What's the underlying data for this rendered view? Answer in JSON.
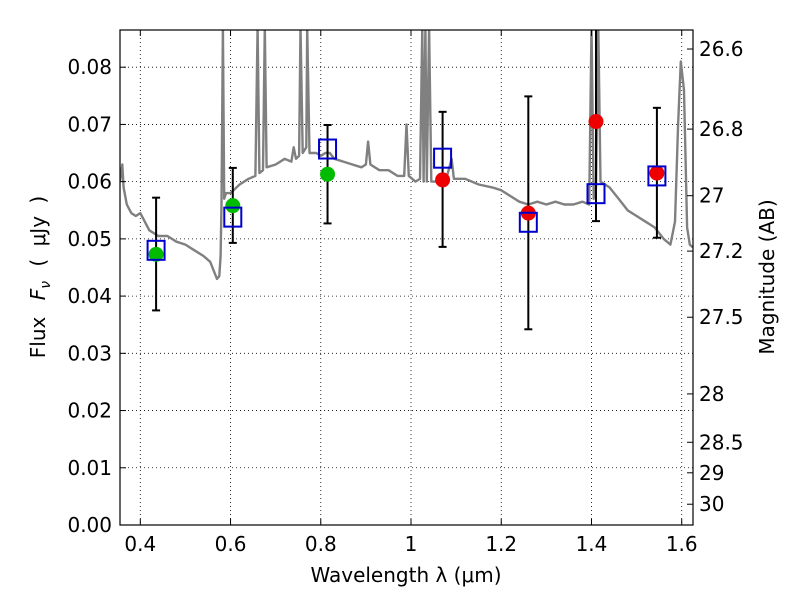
{
  "chart_data": {
    "type": "scatter",
    "xlabel": "Wavelength  λ (μm)",
    "ylabel": "Flux  F_ν  ( μJy )",
    "ylabel_parts": {
      "a": "Flux",
      "b": "F",
      "c": "ν",
      "d": "(",
      "e": "μJy",
      "f": ")"
    },
    "y2label": "Magnitude (AB)",
    "xlim": [
      0.355,
      1.625
    ],
    "ylim": [
      0.0,
      0.0865
    ],
    "grid": true,
    "x_ticks": [
      {
        "value": 0.4,
        "label": "0.4"
      },
      {
        "value": 0.6,
        "label": "0.6"
      },
      {
        "value": 0.8,
        "label": "0.8"
      },
      {
        "value": 1.0,
        "label": "1"
      },
      {
        "value": 1.2,
        "label": "1.2"
      },
      {
        "value": 1.4,
        "label": "1.4"
      },
      {
        "value": 1.6,
        "label": "1.6"
      }
    ],
    "y_ticks": [
      {
        "value": 0.0,
        "label": "0.00"
      },
      {
        "value": 0.01,
        "label": "0.01"
      },
      {
        "value": 0.02,
        "label": "0.02"
      },
      {
        "value": 0.03,
        "label": "0.03"
      },
      {
        "value": 0.04,
        "label": "0.04"
      },
      {
        "value": 0.05,
        "label": "0.05"
      },
      {
        "value": 0.06,
        "label": "0.06"
      },
      {
        "value": 0.07,
        "label": "0.07"
      },
      {
        "value": 0.08,
        "label": "0.08"
      }
    ],
    "mag_ticks": [
      {
        "value": 26.6,
        "label": "26.6"
      },
      {
        "value": 26.8,
        "label": "26.8"
      },
      {
        "value": 27.0,
        "label": "27"
      },
      {
        "value": 27.2,
        "label": "27.2"
      },
      {
        "value": 27.5,
        "label": "27.5"
      },
      {
        "value": 28.0,
        "label": "28"
      },
      {
        "value": 28.5,
        "label": "28.5"
      },
      {
        "value": 29.0,
        "label": "29"
      },
      {
        "value": 30.0,
        "label": "30"
      }
    ],
    "series": [
      {
        "marker": "circle",
        "color": "#00bb00",
        "points": [
          {
            "x": 0.435,
            "y": 0.0473,
            "err_lo": 0.0375,
            "err_hi": 0.0572
          },
          {
            "x": 0.605,
            "y": 0.0558,
            "err_lo": 0.0493,
            "err_hi": 0.0624
          },
          {
            "x": 0.815,
            "y": 0.0613,
            "err_lo": 0.0527,
            "err_hi": 0.0699
          }
        ]
      },
      {
        "marker": "circle",
        "color": "#ee0000",
        "points": [
          {
            "x": 1.07,
            "y": 0.0603,
            "err_lo": 0.0486,
            "err_hi": 0.0722
          },
          {
            "x": 1.26,
            "y": 0.0545,
            "err_lo": 0.0342,
            "err_hi": 0.0749
          },
          {
            "x": 1.41,
            "y": 0.0705,
            "err_lo": 0.0531,
            "err_hi": 0.088
          },
          {
            "x": 1.545,
            "y": 0.0615,
            "err_lo": 0.0502,
            "err_hi": 0.0729
          }
        ]
      },
      {
        "marker": "square",
        "color": "#0000cc",
        "points": [
          {
            "x": 0.435,
            "y": 0.048
          },
          {
            "x": 0.605,
            "y": 0.0538
          },
          {
            "x": 0.815,
            "y": 0.0657
          },
          {
            "x": 1.07,
            "y": 0.0641
          },
          {
            "x": 1.26,
            "y": 0.0529
          },
          {
            "x": 1.41,
            "y": 0.0579
          },
          {
            "x": 1.545,
            "y": 0.061
          }
        ]
      }
    ],
    "model_spectrum": {
      "color": "#808080",
      "points": [
        [
          0.355,
          0.06
        ],
        [
          0.36,
          0.063
        ],
        [
          0.363,
          0.059
        ],
        [
          0.37,
          0.056
        ],
        [
          0.38,
          0.0545
        ],
        [
          0.39,
          0.054
        ],
        [
          0.4,
          0.0545
        ],
        [
          0.41,
          0.053
        ],
        [
          0.42,
          0.0515
        ],
        [
          0.44,
          0.0505
        ],
        [
          0.46,
          0.0505
        ],
        [
          0.48,
          0.0495
        ],
        [
          0.5,
          0.049
        ],
        [
          0.52,
          0.048
        ],
        [
          0.54,
          0.047
        ],
        [
          0.555,
          0.046
        ],
        [
          0.565,
          0.044
        ],
        [
          0.57,
          0.043
        ],
        [
          0.575,
          0.0435
        ],
        [
          0.578,
          0.047
        ],
        [
          0.58,
          0.056
        ],
        [
          0.583,
          0.087
        ],
        [
          0.586,
          0.057
        ],
        [
          0.59,
          0.058
        ],
        [
          0.6,
          0.058
        ],
        [
          0.62,
          0.0595
        ],
        [
          0.64,
          0.0605
        ],
        [
          0.655,
          0.061
        ],
        [
          0.66,
          0.087
        ],
        [
          0.664,
          0.0615
        ],
        [
          0.672,
          0.062
        ],
        [
          0.676,
          0.087
        ],
        [
          0.68,
          0.0625
        ],
        [
          0.7,
          0.063
        ],
        [
          0.72,
          0.064
        ],
        [
          0.735,
          0.0635
        ],
        [
          0.74,
          0.066
        ],
        [
          0.745,
          0.064
        ],
        [
          0.752,
          0.0645
        ],
        [
          0.755,
          0.087
        ],
        [
          0.76,
          0.065
        ],
        [
          0.768,
          0.066
        ],
        [
          0.77,
          0.087
        ],
        [
          0.775,
          0.065
        ],
        [
          0.79,
          0.065
        ],
        [
          0.8,
          0.0645
        ],
        [
          0.81,
          0.065
        ],
        [
          0.82,
          0.065
        ],
        [
          0.83,
          0.064
        ],
        [
          0.85,
          0.0635
        ],
        [
          0.87,
          0.063
        ],
        [
          0.89,
          0.0625
        ],
        [
          0.9,
          0.063
        ],
        [
          0.905,
          0.067
        ],
        [
          0.91,
          0.063
        ],
        [
          0.93,
          0.062
        ],
        [
          0.95,
          0.062
        ],
        [
          0.97,
          0.061
        ],
        [
          0.985,
          0.061
        ],
        [
          0.99,
          0.07
        ],
        [
          0.995,
          0.061
        ],
        [
          1.01,
          0.06
        ],
        [
          1.02,
          0.0605
        ],
        [
          1.025,
          0.087
        ],
        [
          1.028,
          0.06
        ],
        [
          1.032,
          0.087
        ],
        [
          1.035,
          0.06
        ],
        [
          1.04,
          0.087
        ],
        [
          1.045,
          0.06
        ],
        [
          1.06,
          0.06
        ],
        [
          1.08,
          0.061
        ],
        [
          1.09,
          0.064
        ],
        [
          1.095,
          0.0605
        ],
        [
          1.12,
          0.0605
        ],
        [
          1.15,
          0.0595
        ],
        [
          1.18,
          0.059
        ],
        [
          1.2,
          0.0585
        ],
        [
          1.22,
          0.0575
        ],
        [
          1.24,
          0.0565
        ],
        [
          1.26,
          0.056
        ],
        [
          1.28,
          0.0565
        ],
        [
          1.3,
          0.056
        ],
        [
          1.32,
          0.0565
        ],
        [
          1.34,
          0.056
        ],
        [
          1.36,
          0.056
        ],
        [
          1.38,
          0.0565
        ],
        [
          1.395,
          0.056
        ],
        [
          1.4,
          0.087
        ],
        [
          1.405,
          0.057
        ],
        [
          1.41,
          0.059
        ],
        [
          1.415,
          0.087
        ],
        [
          1.42,
          0.06
        ],
        [
          1.44,
          0.059
        ],
        [
          1.46,
          0.057
        ],
        [
          1.48,
          0.055
        ],
        [
          1.5,
          0.054
        ],
        [
          1.52,
          0.053
        ],
        [
          1.54,
          0.052
        ],
        [
          1.56,
          0.05
        ],
        [
          1.575,
          0.049
        ],
        [
          1.585,
          0.053
        ],
        [
          1.592,
          0.07
        ],
        [
          1.598,
          0.081
        ],
        [
          1.605,
          0.076
        ],
        [
          1.612,
          0.052
        ],
        [
          1.618,
          0.049
        ],
        [
          1.625,
          0.0485
        ]
      ]
    }
  }
}
